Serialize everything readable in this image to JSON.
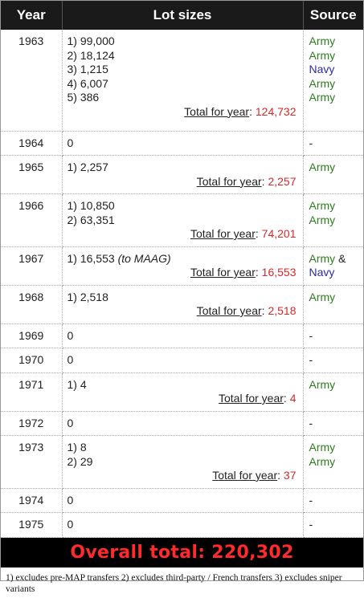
{
  "header": {
    "year": "Year",
    "lots": "Lot sizes",
    "source": "Source"
  },
  "rows": [
    {
      "year": "1963",
      "lots": [
        "1) 99,000",
        "2) 18,124",
        "3) 1,215",
        "4) 6,007",
        "5) 386"
      ],
      "total_label": "Total for year",
      "total_value": "124,732",
      "sources": [
        [
          "Army"
        ],
        [
          "Army"
        ],
        [
          "Navy"
        ],
        [
          "Army"
        ],
        [
          "Army"
        ]
      ]
    },
    {
      "year": "1964",
      "lots": [
        "0"
      ],
      "sources": [
        [
          "-"
        ]
      ]
    },
    {
      "year": "1965",
      "lots": [
        "1) 2,257"
      ],
      "total_label": "Total for year",
      "total_value": "2,257",
      "sources": [
        [
          "Army"
        ]
      ]
    },
    {
      "year": "1966",
      "lots": [
        "1) 10,850",
        "2) 63,351"
      ],
      "total_label": "Total for year",
      "total_value": "74,201",
      "sources": [
        [
          "Army"
        ],
        [
          "Army"
        ]
      ]
    },
    {
      "year": "1967",
      "lots": [
        "1) 16,553"
      ],
      "lot_note": "(to MAAG)",
      "total_label": "Total for year",
      "total_value": "16,553",
      "sources": [
        [
          "Army",
          " &"
        ],
        [
          "Navy"
        ]
      ]
    },
    {
      "year": "1968",
      "lots": [
        "1) 2,518"
      ],
      "total_label": "Total for year",
      "total_value": "2,518",
      "sources": [
        [
          "Army"
        ]
      ]
    },
    {
      "year": "1969",
      "lots": [
        "0"
      ],
      "sources": [
        [
          "-"
        ]
      ]
    },
    {
      "year": "1970",
      "lots": [
        "0"
      ],
      "sources": [
        [
          "-"
        ]
      ]
    },
    {
      "year": "1971",
      "lots": [
        "1) 4"
      ],
      "total_label": "Total for year",
      "total_value": "4",
      "sources": [
        [
          "Army"
        ]
      ]
    },
    {
      "year": "1972",
      "lots": [
        "0"
      ],
      "sources": [
        [
          "-"
        ]
      ]
    },
    {
      "year": "1973",
      "lots": [
        "1) 8",
        "2) 29"
      ],
      "total_label": "Total for year",
      "total_value": "37",
      "sources": [
        [
          "Army"
        ],
        [
          "Army"
        ]
      ]
    },
    {
      "year": "1974",
      "lots": [
        "0"
      ],
      "sources": [
        [
          "-"
        ]
      ]
    },
    {
      "year": "1975",
      "lots": [
        "0"
      ],
      "sources": [
        [
          "-"
        ]
      ]
    }
  ],
  "overall": "Overall total: 220,302",
  "footnote": "1) excludes pre-MAP transfers 2) excludes third-party / French transfers 3) excludes sniper variants",
  "colors": {
    "army": "#2e7d1f",
    "navy": "#2c2ca0",
    "total": "#d2292b",
    "overall": "#ff2a2a"
  }
}
